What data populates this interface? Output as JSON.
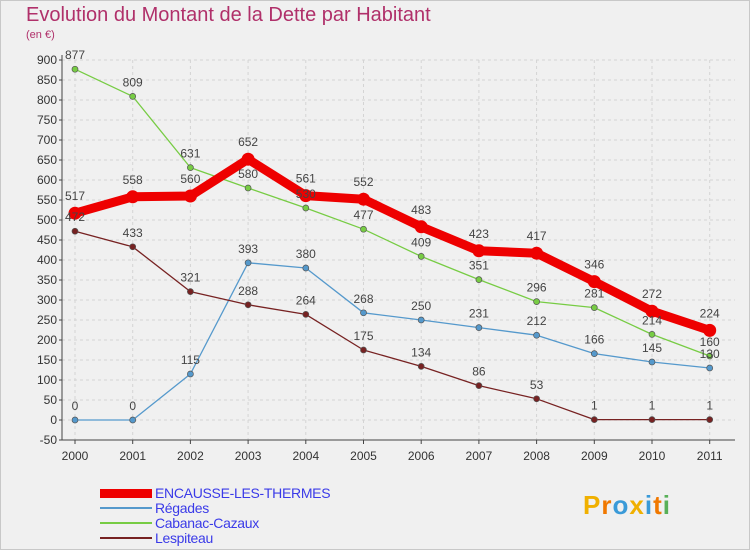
{
  "header": {
    "title": "Evolution du Montant de la Dette par Habitant",
    "unit": "(en €)"
  },
  "logo": {
    "text": "Proxiti",
    "letter_colors": [
      "#f0b000",
      "#f07800",
      "#3a9ad8",
      "#f0b000",
      "#3a9ad8",
      "#f07800",
      "#58b058"
    ]
  },
  "colors": {
    "background": "#f0f0f0",
    "grid": "#d4d4d4",
    "axis": "#444444",
    "title": "#b0306a",
    "legend_text": "#3a3ae8",
    "value_labels": "#444444"
  },
  "chart_data": {
    "type": "line",
    "x": [
      "2000",
      "2001",
      "2002",
      "2003",
      "2004",
      "2005",
      "2006",
      "2007",
      "2008",
      "2009",
      "2010",
      "2011"
    ],
    "ylim": [
      -50,
      900
    ],
    "yticks": [
      -50,
      0,
      50,
      100,
      150,
      200,
      250,
      300,
      350,
      400,
      450,
      500,
      550,
      600,
      650,
      700,
      750,
      800,
      850,
      900
    ],
    "grid": true,
    "legend_position": "bottom-left",
    "series": [
      {
        "name": "ENCAUSSE-LES-THERMES",
        "color": "#ee0000",
        "values": [
          517,
          558,
          560,
          652,
          561,
          552,
          483,
          423,
          417,
          346,
          272,
          224
        ]
      },
      {
        "name": "Régades",
        "color": "#5599cc",
        "values": [
          0,
          0,
          115,
          393,
          380,
          268,
          250,
          231,
          212,
          166,
          145,
          130
        ]
      },
      {
        "name": "Cabanac-Cazaux",
        "color": "#77cc44",
        "values": [
          877,
          809,
          631,
          580,
          530,
          477,
          409,
          351,
          296,
          281,
          214,
          160
        ]
      },
      {
        "name": "Lespiteau",
        "color": "#772222",
        "values": [
          472,
          433,
          321,
          288,
          264,
          175,
          134,
          86,
          53,
          1,
          1,
          1
        ]
      }
    ],
    "data_labels": [
      [
        "517",
        "558",
        "560",
        "652",
        "561",
        "552",
        "483",
        "423",
        "417",
        "346",
        "272",
        "224"
      ],
      [
        "0",
        "0",
        "115",
        "393",
        "380",
        "268",
        "250",
        "231",
        "212",
        "166",
        "145",
        "130"
      ],
      [
        "877",
        "809",
        "631",
        "580",
        "530",
        "477",
        "409",
        "351",
        "296",
        "281",
        "214",
        "160"
      ],
      [
        "472",
        "433",
        "321",
        "288",
        "264",
        "175",
        "134",
        "86",
        "53",
        "1",
        "1",
        "1"
      ]
    ]
  }
}
